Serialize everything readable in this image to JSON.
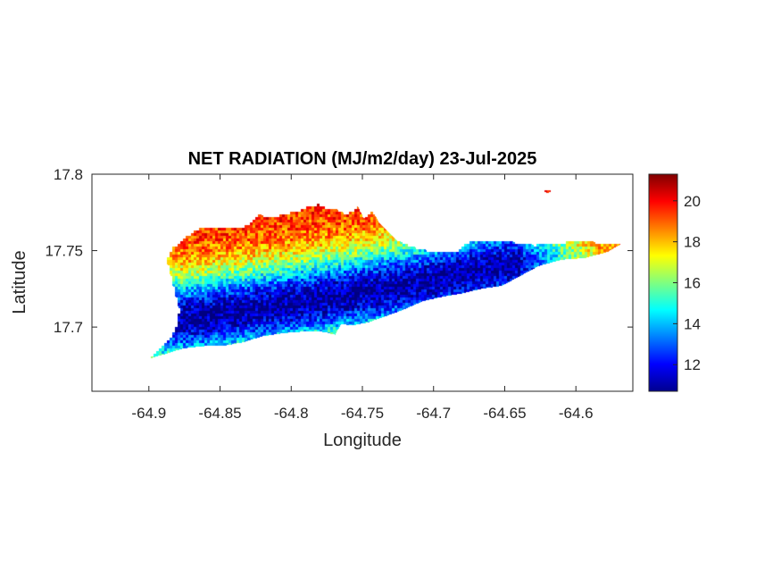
{
  "chart_data": {
    "type": "heatmap",
    "title": "NET RADIATION (MJ/m2/day) 23-Jul-2025",
    "xlabel": "Longitude",
    "ylabel": "Latitude",
    "xlim": [
      -64.94,
      -64.56
    ],
    "ylim": [
      17.658,
      17.8
    ],
    "xticks": [
      -64.9,
      -64.85,
      -64.8,
      -64.75,
      -64.7,
      -64.65,
      -64.6
    ],
    "xtick_labels": [
      "-64.9",
      "-64.85",
      "-64.8",
      "-64.75",
      "-64.7",
      "-64.65",
      "-64.6"
    ],
    "yticks": [
      17.7,
      17.75,
      17.8
    ],
    "ytick_labels": [
      "17.7",
      "17.75",
      "17.8"
    ],
    "colorbar": {
      "colormap": "jet",
      "range": [
        10.7,
        21.3
      ],
      "ticks": [
        12,
        14,
        16,
        18,
        20
      ],
      "tick_labels": [
        "12",
        "14",
        "16",
        "18",
        "20"
      ]
    },
    "value_range": [
      10.7,
      21.3
    ],
    "grid": false,
    "background": "#ffffff",
    "outline": [
      [
        -64.9,
        17.679
      ],
      [
        -64.893,
        17.687
      ],
      [
        -64.886,
        17.693
      ],
      [
        -64.882,
        17.699
      ],
      [
        -64.88,
        17.705
      ],
      [
        -64.879,
        17.712
      ],
      [
        -64.882,
        17.722
      ],
      [
        -64.885,
        17.734
      ],
      [
        -64.888,
        17.744
      ],
      [
        -64.884,
        17.752
      ],
      [
        -64.876,
        17.758
      ],
      [
        -64.868,
        17.764
      ],
      [
        -64.859,
        17.766
      ],
      [
        -64.85,
        17.766
      ],
      [
        -64.838,
        17.765
      ],
      [
        -64.83,
        17.768
      ],
      [
        -64.823,
        17.774
      ],
      [
        -64.815,
        17.772
      ],
      [
        -64.806,
        17.774
      ],
      [
        -64.797,
        17.776
      ],
      [
        -64.789,
        17.779
      ],
      [
        -64.781,
        17.781
      ],
      [
        -64.775,
        17.778
      ],
      [
        -64.768,
        17.777
      ],
      [
        -64.761,
        17.774
      ],
      [
        -64.753,
        17.779
      ],
      [
        -64.749,
        17.771
      ],
      [
        -64.744,
        17.777
      ],
      [
        -64.737,
        17.767
      ],
      [
        -64.726,
        17.757
      ],
      [
        -64.712,
        17.752
      ],
      [
        -64.698,
        17.749
      ],
      [
        -64.685,
        17.749
      ],
      [
        -64.676,
        17.756
      ],
      [
        -64.66,
        17.757
      ],
      [
        -64.645,
        17.756
      ],
      [
        -64.63,
        17.754
      ],
      [
        -64.618,
        17.755
      ],
      [
        -64.605,
        17.756
      ],
      [
        -64.59,
        17.756
      ],
      [
        -64.575,
        17.755
      ],
      [
        -64.567,
        17.755
      ],
      [
        -64.578,
        17.749
      ],
      [
        -64.594,
        17.745
      ],
      [
        -64.61,
        17.744
      ],
      [
        -64.626,
        17.74
      ],
      [
        -64.64,
        17.733
      ],
      [
        -64.652,
        17.727
      ],
      [
        -64.666,
        17.725
      ],
      [
        -64.68,
        17.722
      ],
      [
        -64.693,
        17.72
      ],
      [
        -64.707,
        17.717
      ],
      [
        -64.722,
        17.711
      ],
      [
        -64.734,
        17.707
      ],
      [
        -64.746,
        17.703
      ],
      [
        -64.758,
        17.701
      ],
      [
        -64.765,
        17.702
      ],
      [
        -64.769,
        17.695
      ],
      [
        -64.779,
        17.697
      ],
      [
        -64.792,
        17.697
      ],
      [
        -64.806,
        17.696
      ],
      [
        -64.82,
        17.694
      ],
      [
        -64.834,
        17.69
      ],
      [
        -64.846,
        17.688
      ],
      [
        -64.856,
        17.688
      ],
      [
        -64.866,
        17.687
      ],
      [
        -64.876,
        17.686
      ],
      [
        -64.886,
        17.683
      ],
      [
        -64.894,
        17.681
      ]
    ],
    "islet": [
      [
        -64.62,
        17.789
      ],
      [
        -64.623,
        17.787
      ]
    ],
    "field": {
      "low_band_center_latitude": [
        [
          -64.878,
          17.706
        ],
        [
          -64.8,
          17.716
        ],
        [
          -64.72,
          17.728
        ],
        [
          -64.65,
          17.741
        ]
      ],
      "low_band_min_value": 11.0,
      "edge_value": 19.5
    }
  }
}
